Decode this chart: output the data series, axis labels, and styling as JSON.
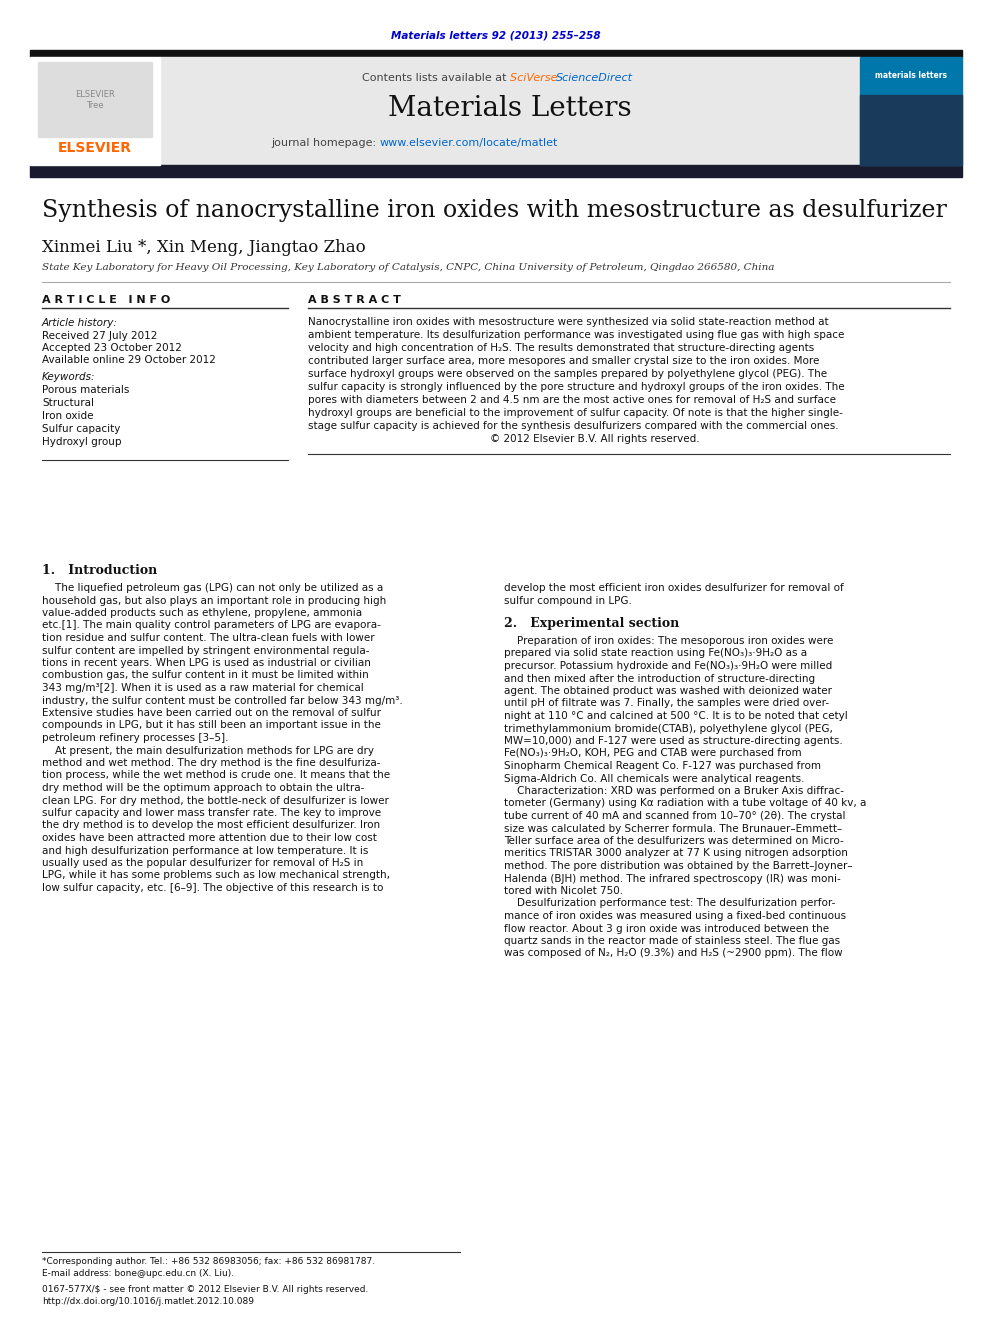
{
  "page_bg": "#ffffff",
  "header_journal": "Materials letters 92 (2013) 255–258",
  "header_journal_color": "#0000cc",
  "header_contents": "Contents lists available at ",
  "header_sciverse": "SciVerse ScienceDirect",
  "journal_title": "Materials Letters",
  "journal_homepage": "journal homepage: ",
  "journal_url": "www.elsevier.com/locate/matlet",
  "journal_url_color": "#0066cc",
  "header_bg": "#e8e8e8",
  "paper_title": "Synthesis of nanocrystalline iron oxides with mesostructure as desulfurizer",
  "authors": "Xinmei Liu *, Xin Meng, Jiangtao Zhao",
  "affiliation": "State Key Laboratory for Heavy Oil Processing, Key Laboratory of Catalysis, CNPC, China University of Petroleum, Qingdao 266580, China",
  "article_info_header": "A R T I C L E   I N F O",
  "abstract_header": "A B S T R A C T",
  "article_history_label": "Article history:",
  "received": "Received 27 July 2012",
  "accepted": "Accepted 23 October 2012",
  "available": "Available online 29 October 2012",
  "keywords_label": "Keywords:",
  "keywords": [
    "Porous materials",
    "Structural",
    "Iron oxide",
    "Sulfur capacity",
    "Hydroxyl group"
  ],
  "abstract_lines": [
    "Nanocrystalline iron oxides with mesostructure were synthesized via solid state-reaction method at",
    "ambient temperature. Its desulfurization performance was investigated using flue gas with high space",
    "velocity and high concentration of H₂S. The results demonstrated that structure-directing agents",
    "contributed larger surface area, more mesopores and smaller crystal size to the iron oxides. More",
    "surface hydroxyl groups were observed on the samples prepared by polyethylene glycol (PEG). The",
    "sulfur capacity is strongly influenced by the pore structure and hydroxyl groups of the iron oxides. The",
    "pores with diameters between 2 and 4.5 nm are the most active ones for removal of H₂S and surface",
    "hydroxyl groups are beneficial to the improvement of sulfur capacity. Of note is that the higher single-",
    "stage sulfur capacity is achieved for the synthesis desulfurizers compared with the commercial ones.",
    "                                                        © 2012 Elsevier B.V. All rights reserved."
  ],
  "intro_header": "1.   Introduction",
  "intro_lines": [
    "    The liquefied petroleum gas (LPG) can not only be utilized as a",
    "household gas, but also plays an important role in producing high",
    "value-added products such as ethylene, propylene, ammonia",
    "etc.[1]. The main quality control parameters of LPG are evapora-",
    "tion residue and sulfur content. The ultra-clean fuels with lower",
    "sulfur content are impelled by stringent environmental regula-",
    "tions in recent years. When LPG is used as industrial or civilian",
    "combustion gas, the sulfur content in it must be limited within",
    "343 mg/m³[2]. When it is used as a raw material for chemical",
    "industry, the sulfur content must be controlled far below 343 mg/m³.",
    "Extensive studies have been carried out on the removal of sulfur",
    "compounds in LPG, but it has still been an important issue in the",
    "petroleum refinery processes [3–5].",
    "    At present, the main desulfurization methods for LPG are dry",
    "method and wet method. The dry method is the fine desulfuriza-",
    "tion process, while the wet method is crude one. It means that the",
    "dry method will be the optimum approach to obtain the ultra-",
    "clean LPG. For dry method, the bottle-neck of desulfurizer is lower",
    "sulfur capacity and lower mass transfer rate. The key to improve",
    "the dry method is to develop the most efficient desulfurizer. Iron",
    "oxides have been attracted more attention due to their low cost",
    "and high desulfurization performance at low temperature. It is",
    "usually used as the popular desulfurizer for removal of H₂S in",
    "LPG, while it has some problems such as low mechanical strength,",
    "low sulfur capacity, etc. [6–9]. The objective of this research is to"
  ],
  "right_col_intro": [
    "develop the most efficient iron oxides desulfurizer for removal of",
    "sulfur compound in LPG."
  ],
  "exp_header": "2.   Experimental section",
  "exp_lines": [
    "    Preparation of iron oxides: The mesoporous iron oxides were",
    "prepared via solid state reaction using Fe(NO₃)₃·9H₂O as a",
    "precursor. Potassium hydroxide and Fe(NO₃)₃·9H₂O were milled",
    "and then mixed after the introduction of structure-directing",
    "agent. The obtained product was washed with deionized water",
    "until pH of filtrate was 7. Finally, the samples were dried over-",
    "night at 110 °C and calcined at 500 °C. It is to be noted that cetyl",
    "trimethylammonium bromide(CTAB), polyethylene glycol (PEG,",
    "MW=10,000) and F-127 were used as structure-directing agents.",
    "Fe(NO₃)₃·9H₂O, KOH, PEG and CTAB were purchased from",
    "Sinopharm Chemical Reagent Co. F-127 was purchased from",
    "Sigma-Aldrich Co. All chemicals were analytical reagents.",
    "    Characterization: XRD was performed on a Bruker Axis diffrac-",
    "tometer (Germany) using Kα radiation with a tube voltage of 40 kv, a",
    "tube current of 40 mA and scanned from 10–70° (2θ). The crystal",
    "size was calculated by Scherrer formula. The Brunauer–Emmett–",
    "Teller surface area of the desulfurizers was determined on Micro-",
    "meritics TRISTAR 3000 analyzer at 77 K using nitrogen adsorption",
    "method. The pore distribution was obtained by the Barrett–Joyner–",
    "Halenda (BJH) method. The infrared spectroscopy (IR) was moni-",
    "tored with Nicolet 750.",
    "    Desulfurization performance test: The desulfurization perfor-",
    "mance of iron oxides was measured using a fixed-bed continuous",
    "flow reactor. About 3 g iron oxide was introduced between the",
    "quartz sands in the reactor made of stainless steel. The flue gas",
    "was composed of N₂, H₂O (9.3%) and H₂S (~2900 ppm). The flow"
  ],
  "footer_note": "*Corresponding author. Tel.: +86 532 86983056; fax: +86 532 86981787.",
  "footer_email": "E-mail address: bone@upc.edu.cn (X. Liu).",
  "footer_copy1": "0167-577X/$ - see front matter © 2012 Elsevier B.V. All rights reserved.",
  "footer_copy2": "http://dx.doi.org/10.1016/j.matlet.2012.10.089"
}
